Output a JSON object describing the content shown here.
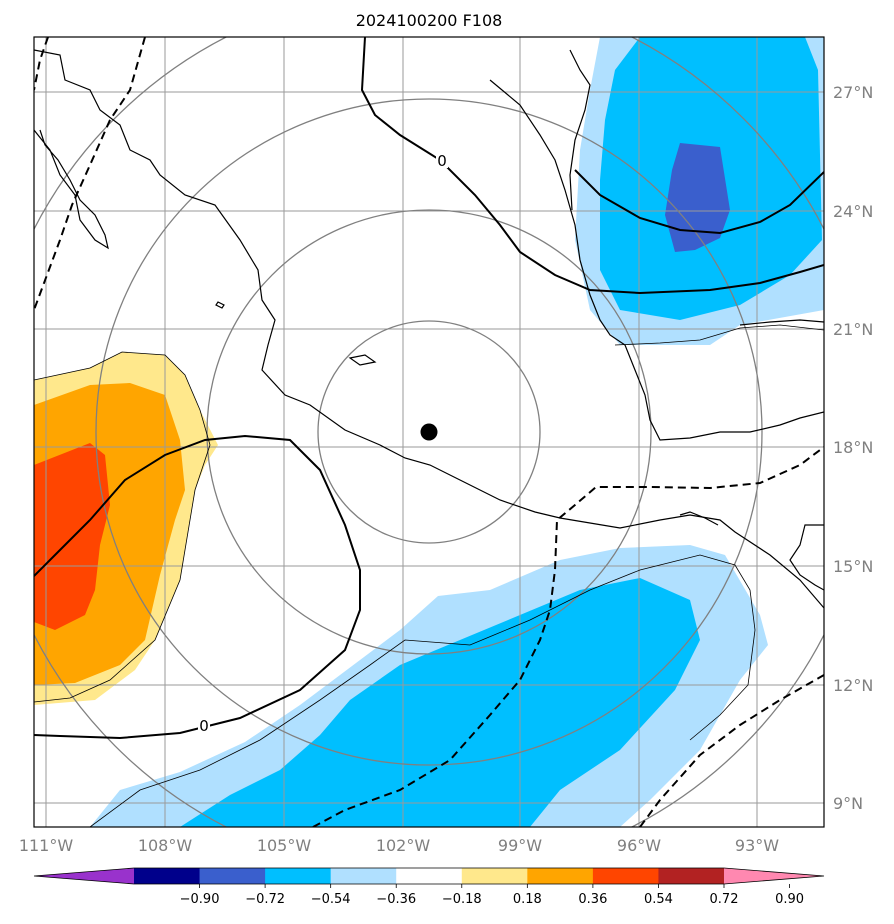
{
  "title": "2024100200 F108",
  "map": {
    "lon_range": [
      -111.0,
      -91.5
    ],
    "lat_range": [
      8.5,
      28.3
    ],
    "lon_ticks": [
      {
        "value": -111,
        "label": "111°W"
      },
      {
        "value": -108,
        "label": "108°W"
      },
      {
        "value": -105,
        "label": "105°W"
      },
      {
        "value": -102,
        "label": "102°W"
      },
      {
        "value": -99,
        "label": "99°W"
      },
      {
        "value": -96,
        "label": "96°W"
      },
      {
        "value": -93,
        "label": "93°W"
      }
    ],
    "lat_ticks": [
      {
        "value": 27,
        "label": "27°N"
      },
      {
        "value": 24,
        "label": "24°N"
      },
      {
        "value": 21,
        "label": "21°N"
      },
      {
        "value": 18,
        "label": "18°N"
      },
      {
        "value": 15,
        "label": "15°N"
      },
      {
        "value": 12,
        "label": "12°N"
      },
      {
        "value": 9,
        "label": "9°N"
      }
    ],
    "gridlines": true,
    "center_marker": {
      "lon": -101.3,
      "lat": 18.4
    },
    "contour_labels": [
      {
        "text": "0",
        "lon": -100.9,
        "lat": 25.0
      },
      {
        "text": "0",
        "lon": -106.9,
        "lat": 10.5
      }
    ]
  },
  "colorbar": {
    "levels": [
      "−0.90",
      "−0.72",
      "−0.54",
      "−0.36",
      "−0.18",
      "0.18",
      "0.36",
      "0.54",
      "0.72",
      "0.90"
    ],
    "colors": [
      "#9932CC",
      "#00008B",
      "#3A5FCD",
      "#00BFFF",
      "#B0E0FF",
      "#FFFFFF",
      "#FFE88C",
      "#FFA500",
      "#FF4500",
      "#B22222",
      "#FF88B0"
    ]
  }
}
